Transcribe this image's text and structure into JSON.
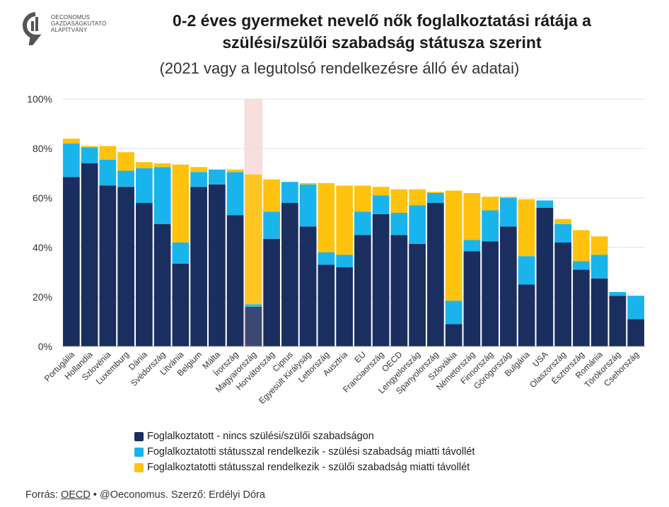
{
  "logo": {
    "lines": [
      "OECONOMUS",
      "GAZDASÁGKUTATÓ",
      "ALAPÍTVÁNY"
    ]
  },
  "title_line1": "0-2 éves gyermeket nevelő nők foglalkoztatási rátája a",
  "title_line2": "szülési/szülői szabadság státusza szerint",
  "subtitle": "(2021 vagy a legutolsó rendelkezésre álló év adatai)",
  "colors": {
    "employed": "#1a2e5f",
    "maternity": "#19b4ec",
    "parental": "#ffc20e",
    "highlight": "#f9dede",
    "grid": "#e2e2e2"
  },
  "chart_data": {
    "type": "bar",
    "stacked": true,
    "ylim": [
      0,
      100
    ],
    "yticks": [
      "0%",
      "20%",
      "40%",
      "60%",
      "80%",
      "100%"
    ],
    "grid": true,
    "legend_position": "bottom",
    "highlight_category": "Magyarország",
    "categories": [
      "Portugália",
      "Hollandia",
      "Szlovénia",
      "Luxemburg",
      "Dánia",
      "Svédország",
      "Litvánia",
      "Belgium",
      "Málta",
      "Írország",
      "Magyarország",
      "Horvátország",
      "Ciprus",
      "Egyesült Királyság",
      "Lettország",
      "Ausztria",
      "EU",
      "Franciaország",
      "OECD",
      "Lengyelország",
      "Spanyolország",
      "Szlovákia",
      "Németország",
      "Finnország",
      "Görögország",
      "Bulgária",
      "USA",
      "Olaszország",
      "Észtország",
      "Románia",
      "Törökország",
      "Csehország"
    ],
    "series": [
      {
        "name": "Foglalkoztatott - nincs szülési/szülői szabadságon",
        "values": [
          68.5,
          74,
          65,
          64.5,
          58,
          49.5,
          33.5,
          64.5,
          65.5,
          53,
          16,
          43.5,
          58,
          48.5,
          33,
          32,
          45,
          53.5,
          45,
          41.5,
          58,
          9,
          38.5,
          42.5,
          48.5,
          25,
          56,
          42,
          31,
          27.5,
          20.5,
          11
        ]
      },
      {
        "name": "Foglalkoztatotti státusszal rendelkezik - szülési szabadság miatti távollét",
        "values": [
          13.5,
          6.5,
          10.5,
          6.5,
          14,
          23,
          8.5,
          6,
          6,
          17.5,
          1,
          11,
          8.5,
          17,
          5,
          5,
          9.5,
          7.5,
          9,
          15.5,
          4,
          9.5,
          4.5,
          12.5,
          11.5,
          11.5,
          3,
          7.5,
          3.5,
          9.5,
          1.5,
          9.5
        ]
      },
      {
        "name": "Foglalkoztatotti státusszal rendelkezik - szülői szabadság miatti távollét",
        "values": [
          2,
          0.5,
          5.5,
          7.5,
          2.5,
          1.5,
          31.5,
          2,
          0,
          1,
          52.5,
          13,
          0,
          0.5,
          28,
          28,
          10.5,
          3.5,
          9.5,
          6.5,
          0.5,
          44.5,
          19,
          5.5,
          0.5,
          23,
          0,
          2,
          12.5,
          7.5,
          0,
          0
        ]
      }
    ]
  },
  "source": {
    "prefix": "Forrás: ",
    "link": "OECD",
    "suffix": " • @Oeconomus. Szerző: Erdélyi Dóra"
  }
}
